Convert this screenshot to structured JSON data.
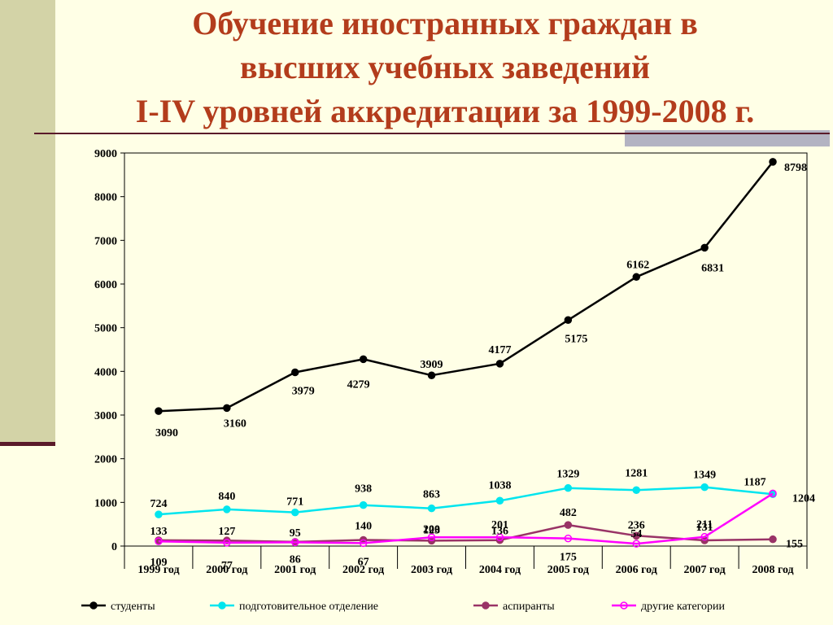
{
  "title": {
    "line1": "Обучение иностранных граждан в",
    "line2": "высших учебных заведений",
    "line3": "I-IV уровней аккредитации за 1999-2008 г."
  },
  "chart_data": {
    "type": "line",
    "categories": [
      "1999 год",
      "2000 год",
      "2001 год",
      "2002 год",
      "2003 год",
      "2004 год",
      "2005 год",
      "2006 год",
      "2007 год",
      "2008 год"
    ],
    "ylim": [
      0,
      9000
    ],
    "yticks": [
      0,
      1000,
      2000,
      3000,
      4000,
      5000,
      6000,
      7000,
      8000,
      9000
    ],
    "legend_position": "bottom",
    "grid": false,
    "series": [
      {
        "name": "студенты",
        "color": "#000000",
        "marker": "filled",
        "values": [
          3090,
          3160,
          3979,
          4279,
          3909,
          4177,
          5175,
          6162,
          6831,
          8798
        ],
        "labels": [
          "3090",
          "3160",
          "3979",
          "4279",
          "3909",
          "4177",
          "5175",
          "6162",
          "6831",
          "8798"
        ]
      },
      {
        "name": "подготовительное отделение",
        "color": "#00e5ee",
        "marker": "filled",
        "values": [
          724,
          840,
          771,
          938,
          863,
          1038,
          1329,
          1281,
          1349,
          1187
        ],
        "labels": [
          "724",
          "840",
          "771",
          "938",
          "863",
          "1038",
          "1329",
          "1281",
          "1349",
          "1187"
        ]
      },
      {
        "name": "аспиранты",
        "color": "#993366",
        "marker": "filled",
        "values": [
          133,
          127,
          95,
          140,
          123,
          136,
          482,
          236,
          131,
          155
        ],
        "labels": [
          "133",
          "127",
          "95",
          "140",
          "123",
          "136",
          "482",
          "236",
          "131",
          "155"
        ]
      },
      {
        "name": "другие категории",
        "color": "#ff00ff",
        "marker": "hollow",
        "values": [
          109,
          77,
          86,
          67,
          200,
          201,
          175,
          54,
          211,
          1204
        ],
        "labels": [
          "109",
          "77",
          "86",
          "67",
          "200",
          "201",
          "175",
          "54",
          "211",
          "1204"
        ]
      }
    ]
  }
}
